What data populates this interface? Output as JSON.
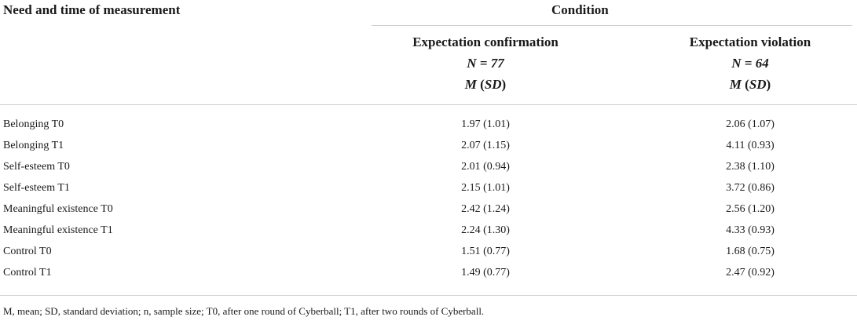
{
  "table": {
    "header": {
      "row_label": "Need and time of measurement",
      "condition": "Condition",
      "columns": [
        {
          "name": "Expectation confirmation",
          "n": "N = 77",
          "m_prefix": "M",
          "m_sd": "SD"
        },
        {
          "name": "Expectation violation",
          "n": "N = 64",
          "m_prefix": "M",
          "m_sd": "SD"
        }
      ]
    },
    "rows": [
      {
        "label": "Belonging T0",
        "confirmation": "1.97 (1.01)",
        "violation": "2.06 (1.07)"
      },
      {
        "label": "Belonging T1",
        "confirmation": "2.07 (1.15)",
        "violation": "4.11 (0.93)"
      },
      {
        "label": "Self-esteem T0",
        "confirmation": "2.01 (0.94)",
        "violation": "2.38 (1.10)"
      },
      {
        "label": "Self-esteem T1",
        "confirmation": "2.15 (1.01)",
        "violation": "3.72 (0.86)"
      },
      {
        "label": "Meaningful existence T0",
        "confirmation": "2.42 (1.24)",
        "violation": "2.56 (1.20)"
      },
      {
        "label": "Meaningful existence T1",
        "confirmation": "2.24 (1.30)",
        "violation": "4.33 (0.93)"
      },
      {
        "label": "Control T0",
        "confirmation": "1.51 (0.77)",
        "violation": "1.68 (0.75)"
      },
      {
        "label": "Control T1",
        "confirmation": "1.49 (0.77)",
        "violation": "2.47 (0.92)"
      }
    ],
    "footnote": "M, mean; SD, standard deviation; n, sample size; T0, after one round of Cyberball; T1, after two rounds of Cyberball."
  }
}
